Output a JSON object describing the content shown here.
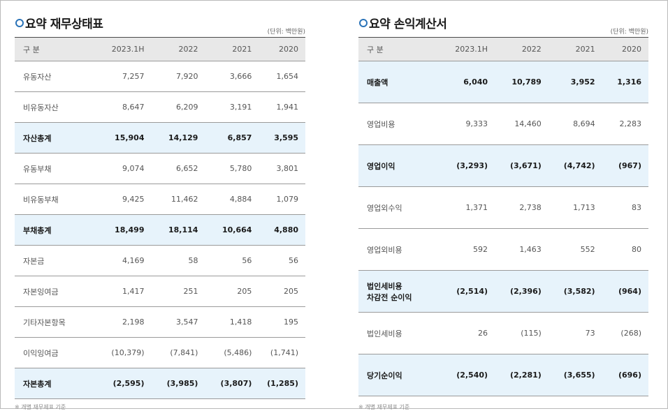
{
  "balance": {
    "title": "요약 재무상태표",
    "unit": "(단위: 백만원)",
    "headers": [
      "구 분",
      "2023.1H",
      "2022",
      "2021",
      "2020"
    ],
    "rows": [
      {
        "label": "유동자산",
        "values": [
          "7,257",
          "7,920",
          "3,666",
          "1,654"
        ],
        "total": false
      },
      {
        "label": "비유동자산",
        "values": [
          "8,647",
          "6,209",
          "3,191",
          "1,941"
        ],
        "total": false
      },
      {
        "label": "자산총계",
        "values": [
          "15,904",
          "14,129",
          "6,857",
          "3,595"
        ],
        "total": true
      },
      {
        "label": "유동부채",
        "values": [
          "9,074",
          "6,652",
          "5,780",
          "3,801"
        ],
        "total": false
      },
      {
        "label": "비유동부채",
        "values": [
          "9,425",
          "11,462",
          "4,884",
          "1,079"
        ],
        "total": false
      },
      {
        "label": "부채총계",
        "values": [
          "18,499",
          "18,114",
          "10,664",
          "4,880"
        ],
        "total": true
      },
      {
        "label": "자본금",
        "values": [
          "4,169",
          "58",
          "56",
          "56"
        ],
        "total": false
      },
      {
        "label": "자본잉여금",
        "values": [
          "1,417",
          "251",
          "205",
          "205"
        ],
        "total": false
      },
      {
        "label": "기타자본항목",
        "values": [
          "2,198",
          "3,547",
          "1,418",
          "195"
        ],
        "total": false
      },
      {
        "label": "이익잉여금",
        "values": [
          "(10,379)",
          "(7,841)",
          "(5,486)",
          "(1,741)"
        ],
        "total": false
      },
      {
        "label": "자본총계",
        "values": [
          "(2,595)",
          "(3,985)",
          "(3,807)",
          "(1,285)"
        ],
        "total": true
      }
    ],
    "footnote": "※ 개별 재무제표 기준"
  },
  "income": {
    "title": "요약 손익계산서",
    "unit": "(단위: 백만원)",
    "headers": [
      "구 분",
      "2023.1H",
      "2022",
      "2021",
      "2020"
    ],
    "rows": [
      {
        "label": "매출액",
        "values": [
          "6,040",
          "10,789",
          "3,952",
          "1,316"
        ],
        "total": true
      },
      {
        "label": "영업비용",
        "values": [
          "9,333",
          "14,460",
          "8,694",
          "2,283"
        ],
        "total": false
      },
      {
        "label": "영업이익",
        "values": [
          "(3,293)",
          "(3,671)",
          "(4,742)",
          "(967)"
        ],
        "total": true
      },
      {
        "label": "영업외수익",
        "values": [
          "1,371",
          "2,738",
          "1,713",
          "83"
        ],
        "total": false
      },
      {
        "label": "영업외비용",
        "values": [
          "592",
          "1,463",
          "552",
          "80"
        ],
        "total": false
      },
      {
        "label": "법인세비용\n차감전 순이익",
        "values": [
          "(2,514)",
          "(2,396)",
          "(3,582)",
          "(964)"
        ],
        "total": true
      },
      {
        "label": "법인세비용",
        "values": [
          "26",
          "(115)",
          "73",
          "(268)"
        ],
        "total": false
      },
      {
        "label": "당기순이익",
        "values": [
          "(2,540)",
          "(2,281)",
          "(3,655)",
          "(696)"
        ],
        "total": true
      }
    ],
    "footnote": "※ 개별 재무제표 기준"
  }
}
